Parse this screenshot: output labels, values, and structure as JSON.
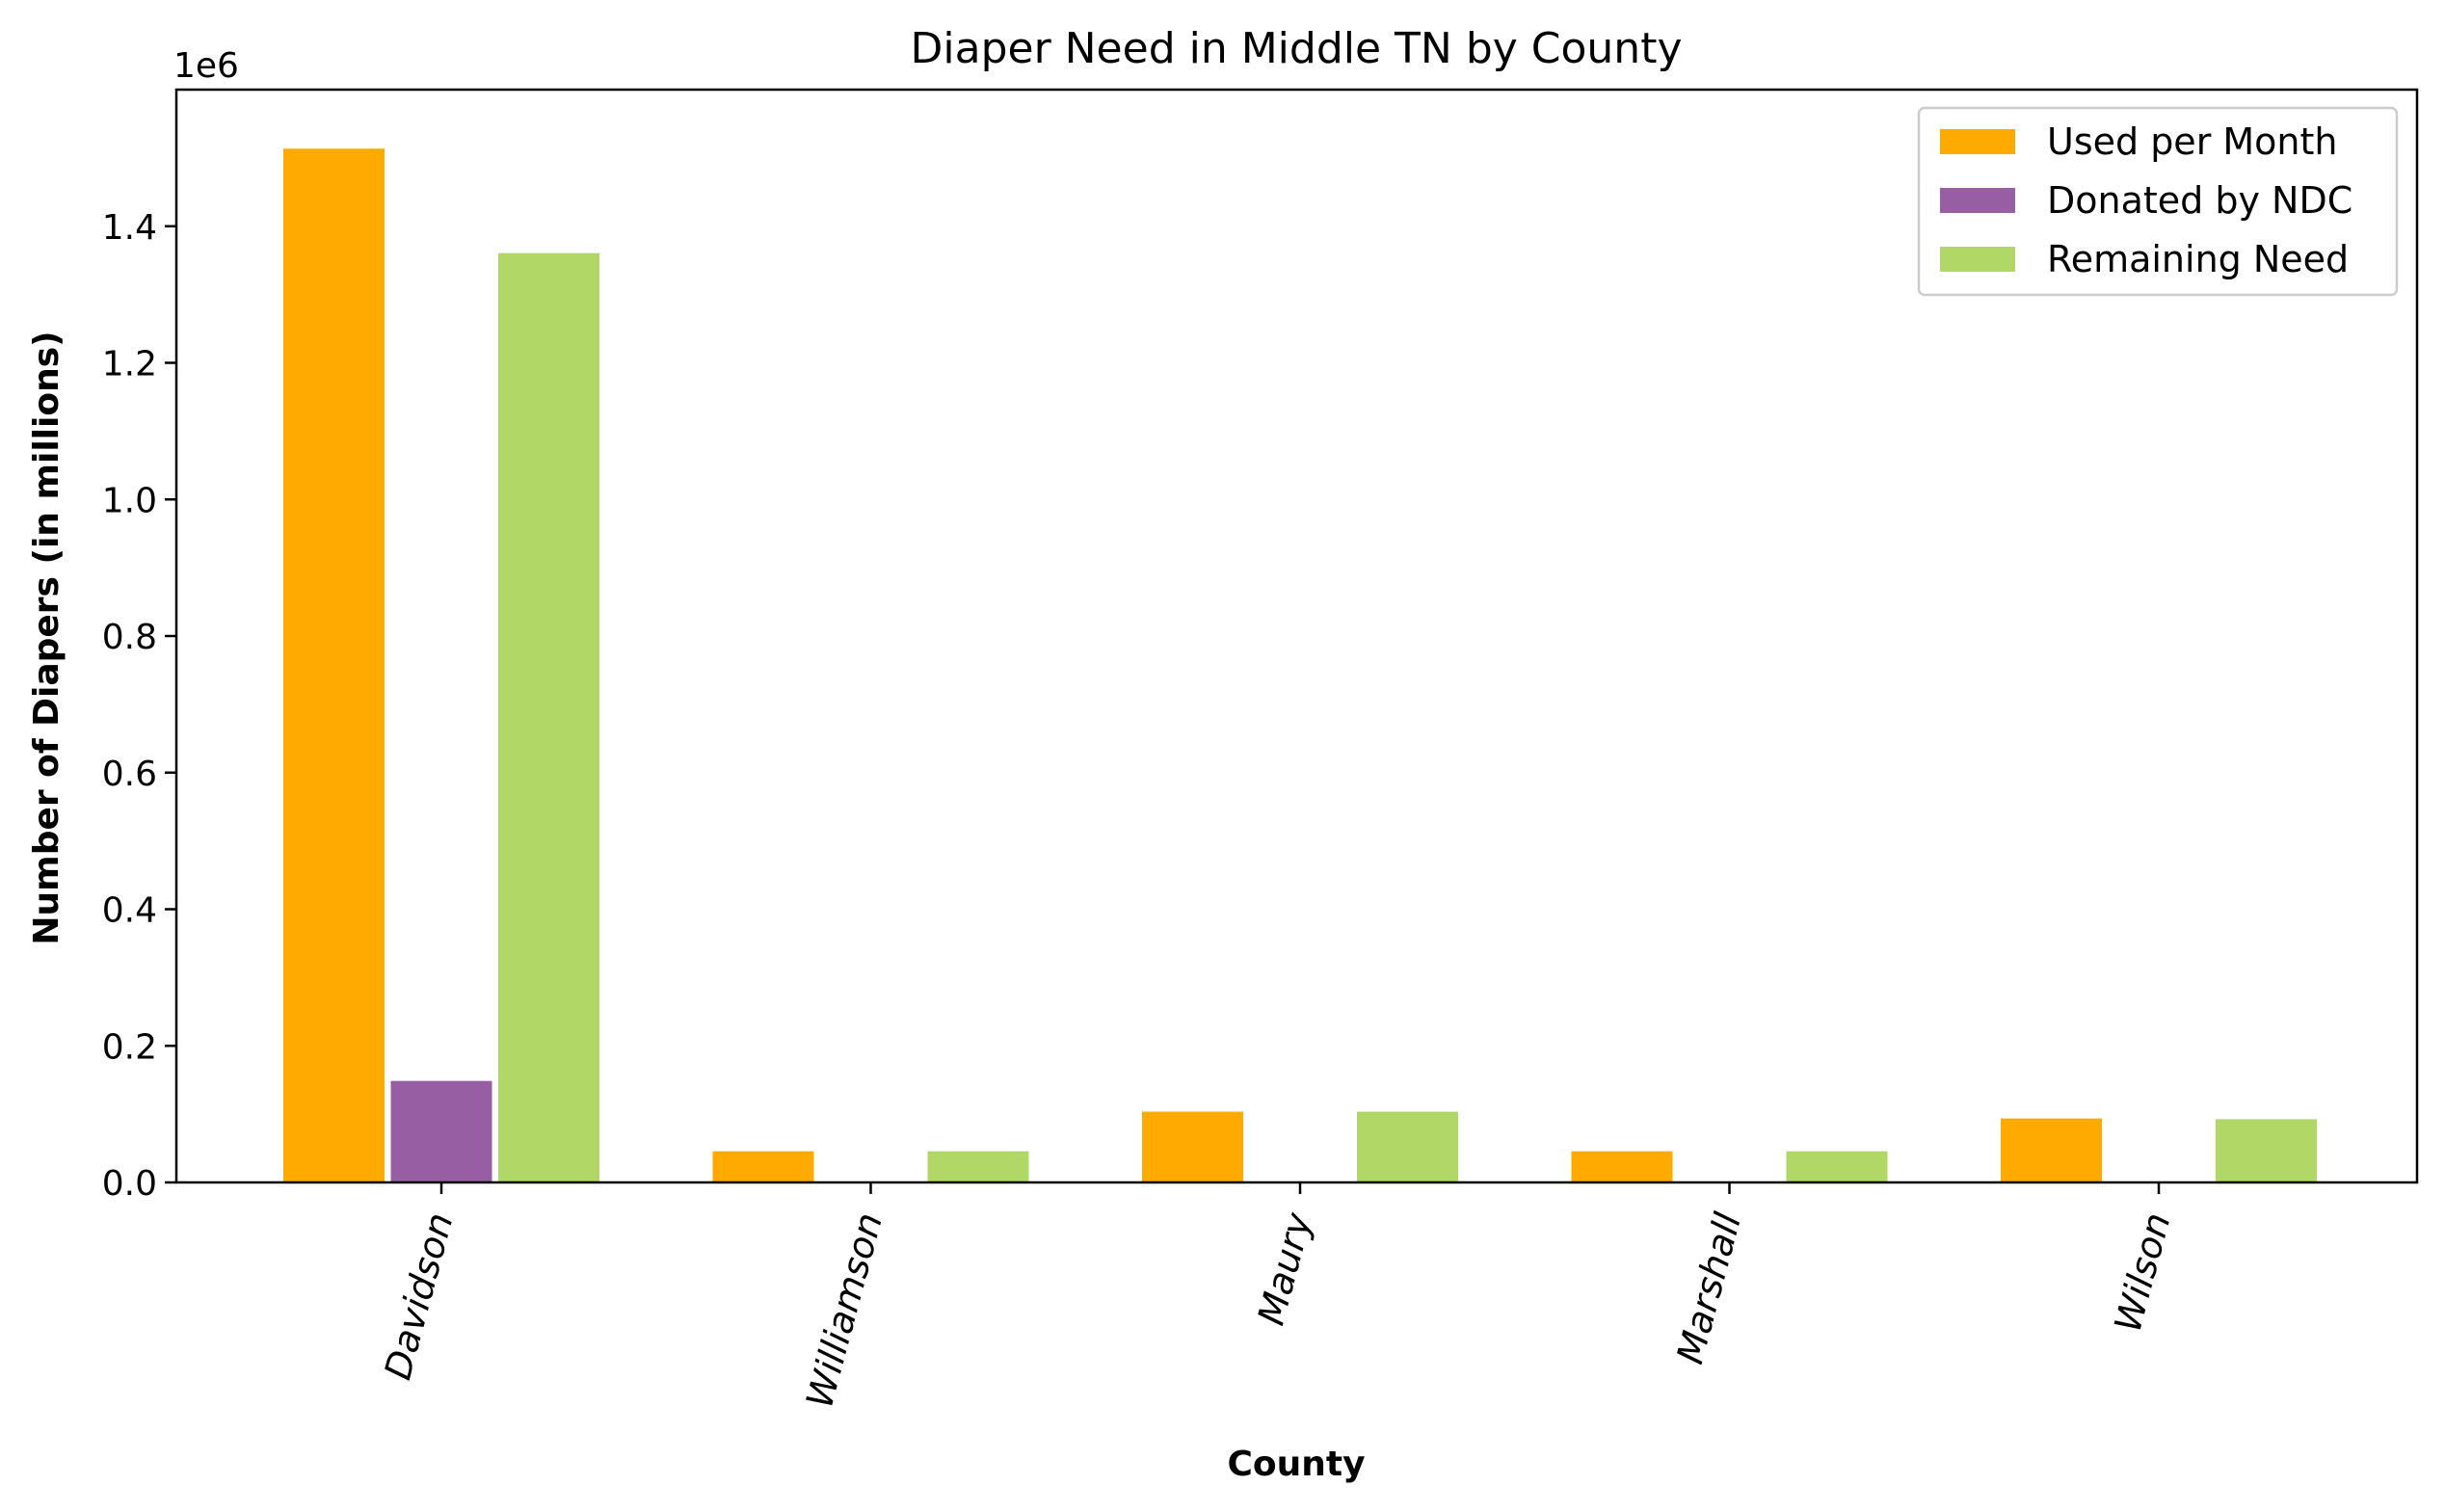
{
  "chart_data": {
    "type": "bar",
    "title": "Diaper Need in Middle TN by County",
    "xlabel": "County",
    "ylabel": "Number of Diapers (in millions)",
    "y_offset_label": "1e6",
    "ylim": [
      0,
      1.6
    ],
    "yticks": [
      "0.0",
      "0.2",
      "0.4",
      "0.6",
      "0.8",
      "1.0",
      "1.2",
      "1.4"
    ],
    "grid": false,
    "legend_position": "top-right",
    "categories": [
      "Davidson",
      "Williamson",
      "Maury",
      "Marshall",
      "Wilson"
    ],
    "series": [
      {
        "name": "Used per Month",
        "color": "#FFAA00",
        "values": [
          1.515,
          0.047,
          0.105,
          0.047,
          0.095
        ]
      },
      {
        "name": "Donated by NDC",
        "color": "#985EA3",
        "values": [
          0.15,
          0,
          0,
          0,
          0
        ]
      },
      {
        "name": "Remaining Need",
        "color": "#B1D866",
        "values": [
          1.362,
          0.047,
          0.105,
          0.047,
          0.094
        ]
      }
    ]
  }
}
